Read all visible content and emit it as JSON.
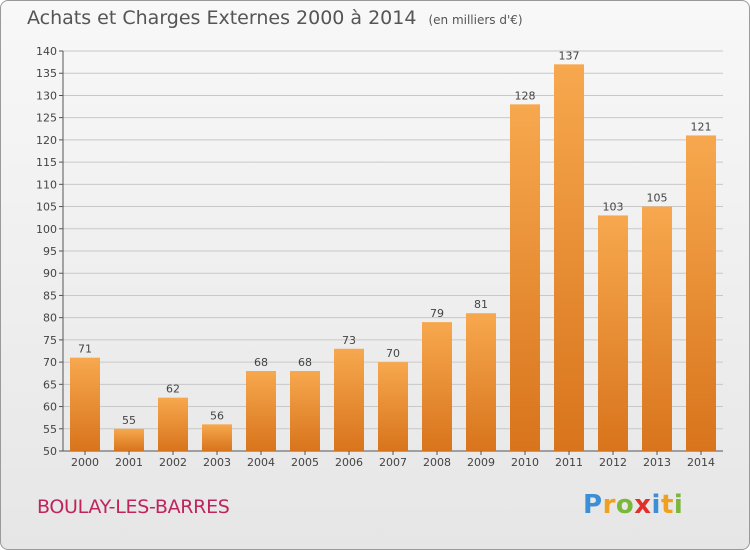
{
  "title": "Achats et Charges Externes 2000 à 2014",
  "unit": "(en milliers d'€)",
  "commune": "BOULAY-LES-BARRES",
  "logo": "Proxiti",
  "colors": {
    "bar_light": "#f7a84e",
    "bar_dark": "#d8741c",
    "grid": "#c8c8c8",
    "text": "#444444",
    "commune": "#c0245c"
  },
  "chart_data": {
    "type": "bar",
    "categories": [
      "2000",
      "2001",
      "2002",
      "2003",
      "2004",
      "2005",
      "2006",
      "2007",
      "2008",
      "2009",
      "2010",
      "2011",
      "2012",
      "2013",
      "2014"
    ],
    "values": [
      71,
      55,
      62,
      56,
      68,
      68,
      73,
      70,
      79,
      81,
      128,
      137,
      103,
      105,
      121
    ],
    "ylim": [
      50,
      140
    ],
    "yticks": [
      50,
      55,
      60,
      65,
      70,
      75,
      80,
      85,
      90,
      95,
      100,
      105,
      110,
      115,
      120,
      125,
      130,
      135,
      140
    ],
    "grid": true,
    "data_labels": true
  }
}
